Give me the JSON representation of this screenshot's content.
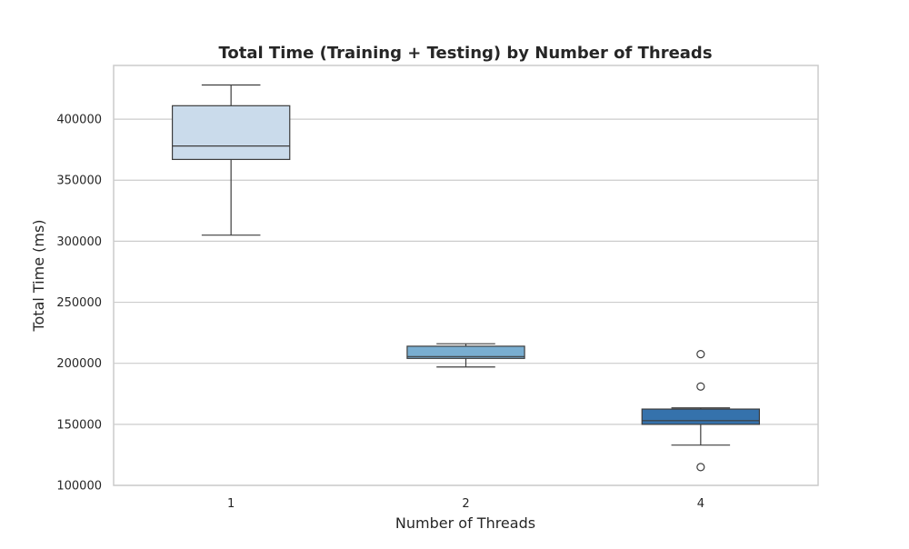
{
  "chart_data": {
    "type": "box",
    "title": "Total Time (Training + Testing) by Number of Threads",
    "xlabel": "Number of Threads",
    "ylabel": "Total Time (ms)",
    "categories": [
      "1",
      "2",
      "4"
    ],
    "ylim": [
      100000,
      444000
    ],
    "yticks": [
      100000,
      150000,
      200000,
      250000,
      300000,
      350000,
      400000
    ],
    "ytick_labels": [
      "100000",
      "150000",
      "200000",
      "250000",
      "300000",
      "350000",
      "400000"
    ],
    "grid": true,
    "legend": "none",
    "colors": [
      "#cadbeb",
      "#79aed1",
      "#3572ac"
    ],
    "box_edge_color": "#3d3d3d",
    "boxes": [
      {
        "category": "1",
        "whisker_low": 305000,
        "q1": 367000,
        "median": 378000,
        "q3": 411000,
        "whisker_high": 428000,
        "outliers": []
      },
      {
        "category": "2",
        "whisker_low": 197000,
        "q1": 204000,
        "median": 205500,
        "q3": 214000,
        "whisker_high": 216000,
        "outliers": []
      },
      {
        "category": "4",
        "whisker_low": 133000,
        "q1": 150000,
        "median": 153000,
        "q3": 162500,
        "whisker_high": 163500,
        "outliers": [
          115000,
          181000,
          207500
        ]
      }
    ]
  }
}
